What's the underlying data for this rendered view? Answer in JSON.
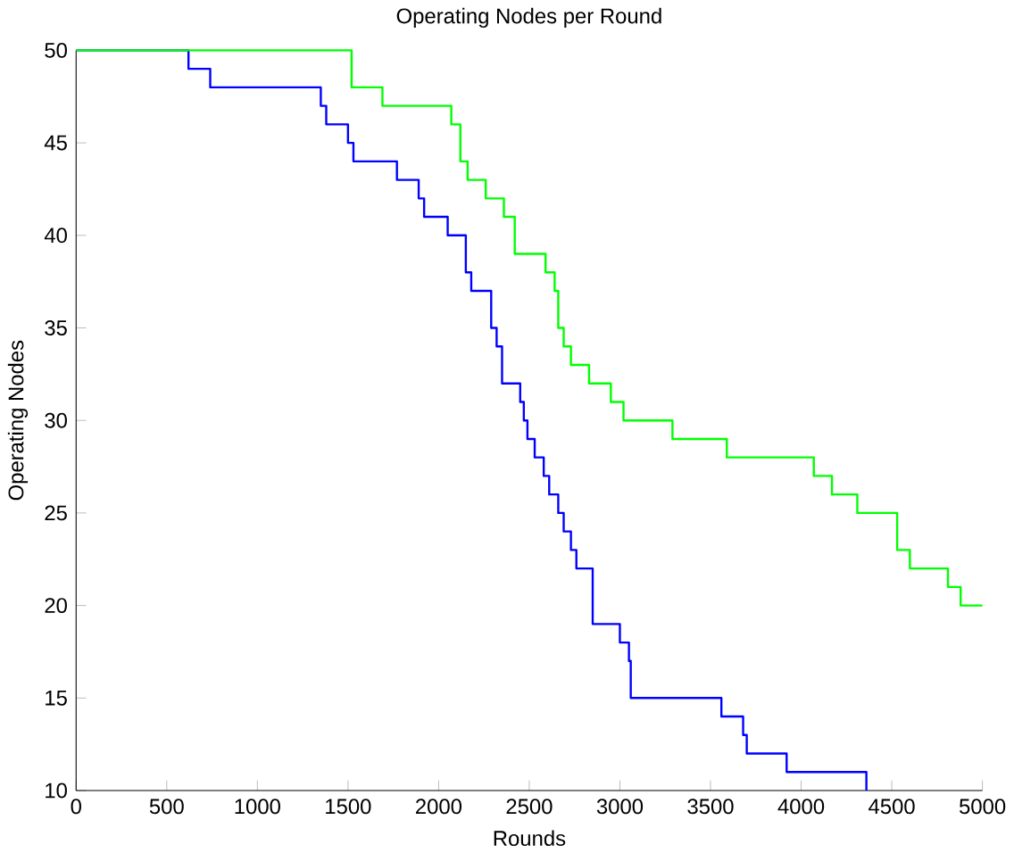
{
  "chart_data": {
    "type": "step",
    "title": "Operating Nodes per Round",
    "xlabel": "Rounds",
    "ylabel": "Operating Nodes",
    "xlim": [
      0,
      5000
    ],
    "ylim": [
      10,
      50
    ],
    "xticks": [
      0,
      500,
      1000,
      1500,
      2000,
      2500,
      3000,
      3500,
      4000,
      4500,
      5000
    ],
    "yticks": [
      10,
      15,
      20,
      25,
      30,
      35,
      40,
      45,
      50
    ],
    "grid": false,
    "series": [
      {
        "color": "#0000ff",
        "x": [
          0,
          620,
          740,
          1350,
          1380,
          1500,
          1530,
          1770,
          1890,
          1920,
          2050,
          2150,
          2180,
          2290,
          2320,
          2350,
          2450,
          2470,
          2490,
          2530,
          2580,
          2610,
          2660,
          2690,
          2730,
          2760,
          2850,
          3000,
          3050,
          3060,
          3560,
          3680,
          3700,
          3920,
          4360
        ],
        "values": [
          50,
          49,
          48,
          47,
          46,
          45,
          44,
          43,
          42,
          41,
          40,
          38,
          37,
          35,
          34,
          32,
          31,
          30,
          29,
          28,
          27,
          26,
          25,
          24,
          23,
          22,
          19,
          18,
          17,
          15,
          14,
          13,
          12,
          11,
          10
        ]
      },
      {
        "color": "#00ff00",
        "x": [
          0,
          1520,
          1690,
          2070,
          2120,
          2160,
          2260,
          2360,
          2420,
          2590,
          2640,
          2660,
          2690,
          2730,
          2830,
          2950,
          3020,
          3290,
          3590,
          4070,
          4170,
          4310,
          4530,
          4600,
          4810,
          4880,
          5000
        ],
        "values": [
          50,
          48,
          47,
          46,
          44,
          43,
          42,
          41,
          39,
          38,
          37,
          35,
          34,
          33,
          32,
          31,
          30,
          29,
          28,
          27,
          26,
          25,
          23,
          22,
          21,
          20,
          20
        ]
      }
    ]
  }
}
